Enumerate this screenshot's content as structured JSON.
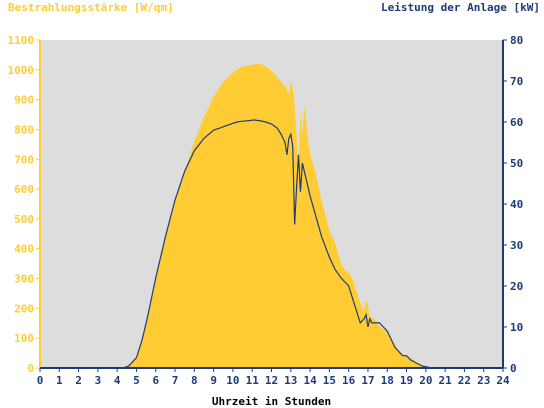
{
  "chart_data": {
    "type": "area",
    "left_axis_label": "Bestrahlungsstärke [W/qm]",
    "right_axis_label": "Leistung der Anlage [kW]",
    "xlabel": "Uhrzeit in Stunden",
    "xlim": [
      0,
      24
    ],
    "ylim_left": [
      0,
      1100
    ],
    "ylim_right": [
      0,
      80
    ],
    "x_ticks": [
      "0",
      "1",
      "2",
      "3",
      "4",
      "5",
      "6",
      "7",
      "8",
      "9",
      "10",
      "11",
      "12",
      "13",
      "14",
      "15",
      "16",
      "17",
      "18",
      "19",
      "20",
      "21",
      "22",
      "23",
      "24"
    ],
    "y_left_ticks": [
      "0",
      "100",
      "200",
      "300",
      "400",
      "500",
      "600",
      "700",
      "800",
      "900",
      "1000",
      "1100"
    ],
    "y_right_ticks": [
      "0",
      "10",
      "20",
      "30",
      "40",
      "50",
      "60",
      "70",
      "80"
    ],
    "grid": false,
    "colors": {
      "irradiance_fill": "#FFCC33",
      "power_line": "#1F3A7A",
      "left_axis": "#FFCC33",
      "right_axis": "#1F3A7A",
      "plot_background": "#DDDDDD"
    },
    "series": [
      {
        "axis": "left",
        "style": "filled-area",
        "x": [
          0,
          4.3,
          4.6,
          5.0,
          5.3,
          5.6,
          6.0,
          6.5,
          7.0,
          7.5,
          8.0,
          8.5,
          9.0,
          9.5,
          10.0,
          10.3,
          10.6,
          10.9,
          11.2,
          11.5,
          11.8,
          12.1,
          12.4,
          12.7,
          12.9,
          13.0,
          13.1,
          13.2,
          13.3,
          13.4,
          13.5,
          13.6,
          13.7,
          13.8,
          13.9,
          14.0,
          14.3,
          14.6,
          15.0,
          15.3,
          15.6,
          15.8,
          16.0,
          16.2,
          16.4,
          16.6,
          16.8,
          16.9,
          17.0,
          17.1,
          17.2,
          17.4,
          17.6,
          17.8,
          18.0,
          18.2,
          18.4,
          18.6,
          18.8,
          19.0,
          19.2,
          19.4,
          19.6,
          19.8,
          20.0,
          20.3,
          20.6,
          21,
          24
        ],
        "values": [
          0,
          0,
          8,
          40,
          100,
          180,
          310,
          450,
          560,
          660,
          760,
          840,
          910,
          960,
          990,
          1005,
          1012,
          1015,
          1020,
          1018,
          1008,
          990,
          968,
          945,
          920,
          960,
          940,
          880,
          780,
          650,
          860,
          780,
          880,
          820,
          760,
          720,
          650,
          560,
          460,
          420,
          350,
          330,
          320,
          300,
          260,
          220,
          190,
          230,
          210,
          170,
          170,
          160,
          140,
          130,
          120,
          100,
          80,
          60,
          45,
          40,
          35,
          25,
          15,
          8,
          5,
          3,
          0,
          0,
          0
        ]
      },
      {
        "axis": "right",
        "style": "line",
        "x": [
          0,
          4.3,
          4.6,
          5.0,
          5.3,
          5.6,
          6.0,
          6.5,
          7.0,
          7.5,
          8.0,
          8.5,
          9.0,
          9.3,
          9.6,
          9.9,
          10.2,
          10.5,
          10.8,
          11.1,
          11.4,
          11.7,
          12.0,
          12.3,
          12.5,
          12.7,
          12.8,
          12.9,
          13.0,
          13.1,
          13.2,
          13.3,
          13.4,
          13.5,
          13.6,
          13.7,
          13.8,
          13.9,
          14.0,
          14.3,
          14.6,
          15.0,
          15.3,
          15.6,
          15.8,
          16.0,
          16.2,
          16.4,
          16.6,
          16.8,
          16.9,
          17.0,
          17.1,
          17.2,
          17.4,
          17.6,
          17.8,
          18.0,
          18.2,
          18.4,
          18.6,
          18.8,
          19.0,
          19.2,
          19.4,
          19.6,
          19.8,
          20.0,
          20.3,
          20.6,
          21,
          24
        ],
        "values": [
          0,
          0,
          0.5,
          2.5,
          7,
          13,
          22,
          32,
          41,
          48,
          53,
          56,
          58,
          58.5,
          59,
          59.5,
          60,
          60.2,
          60.3,
          60.5,
          60.3,
          60.0,
          59.5,
          58.5,
          57,
          55,
          52,
          56,
          57,
          54,
          35,
          44,
          52,
          43,
          50,
          48,
          46,
          44,
          42,
          37,
          32,
          27,
          24,
          22,
          21,
          20,
          17,
          14,
          11,
          12,
          13,
          10,
          12,
          11,
          11,
          11,
          10,
          9,
          7,
          5,
          4,
          3,
          3,
          2,
          1.5,
          1,
          0.5,
          0.3,
          0,
          0,
          0,
          0
        ]
      }
    ]
  }
}
